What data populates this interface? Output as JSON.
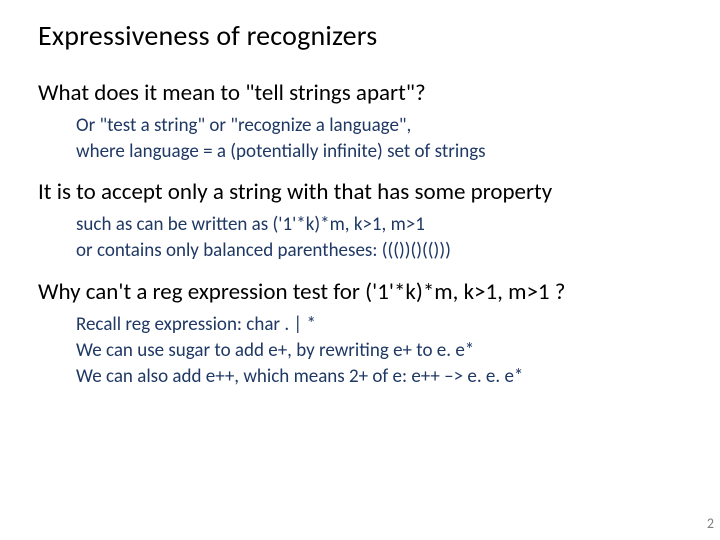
{
  "colors": {
    "background": "#ffffff",
    "title": "#000000",
    "body": "#000000",
    "sub": "#1f3864",
    "pagenum": "#7f7f7f"
  },
  "typography": {
    "title_fontsize": 28,
    "lvl1_fontsize": 23,
    "lvl2_fontsize": 19,
    "family": "Calibri"
  },
  "title": "Expressiveness of recognizers",
  "blocks": [
    {
      "lvl1": "What does it mean to \"tell strings apart\"?",
      "lvl2": [
        "Or \"test a string\" or \"recognize a language\",",
        "where language = a (potentially infinite) set of strings"
      ]
    },
    {
      "lvl1": "It is to accept only a string with that has some property",
      "lvl2": [
        "such as can be written as ('1'*k)*m, k>1, m>1",
        "or contains only balanced parentheses:  ((())()(()))"
      ]
    },
    {
      "lvl1": "Why can't a reg expression test for ('1'*k)*m,  k>1, m>1 ?",
      "lvl2": [
        "Recall reg expression: char  .  | *",
        "We can use sugar to add e+, by rewriting e+ to e. e*",
        "We can also add e++, which means 2+ of e: e++ –> e. e. e*"
      ]
    }
  ],
  "pagenum": "2"
}
